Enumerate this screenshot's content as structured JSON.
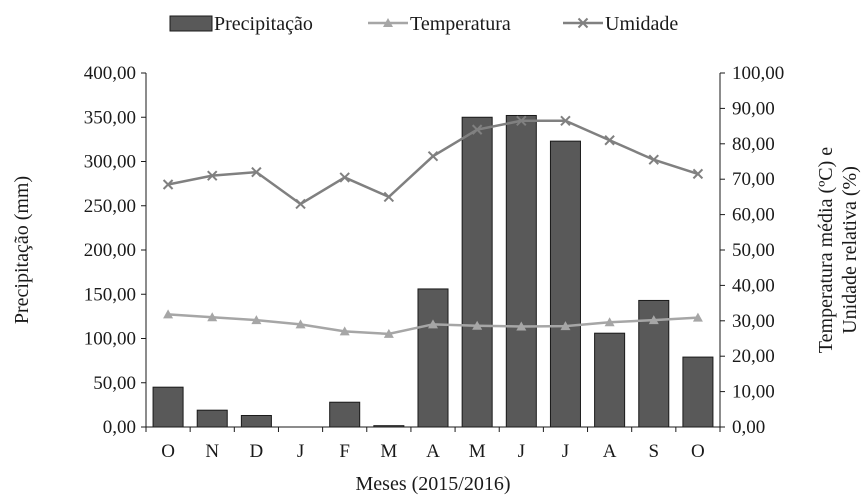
{
  "chart_data": {
    "type": "bar",
    "xlabel": "Meses (2015/2016)",
    "ylabel_left": "Precipitação (mm)",
    "ylabel_right_lines": [
      "Temperatura média (ºC) e",
      "Unidade relativa (%)"
    ],
    "categories": [
      "O",
      "N",
      "D",
      "J",
      "F",
      "M",
      "A",
      "M",
      "J",
      "J",
      "A",
      "S",
      "O"
    ],
    "ylim_left": [
      0,
      400
    ],
    "ylim_right": [
      0,
      100
    ],
    "left_ticks": [
      "0,00",
      "50,00",
      "100,00",
      "150,00",
      "200,00",
      "250,00",
      "300,00",
      "350,00",
      "400,00"
    ],
    "right_ticks": [
      "0,00",
      "10,00",
      "20,00",
      "30,00",
      "40,00",
      "50,00",
      "60,00",
      "70,00",
      "80,00",
      "90,00",
      "100,00"
    ],
    "legend_position": "top",
    "grid": false,
    "series": [
      {
        "name": "Precipitação",
        "kind": "bar",
        "axis": "left",
        "color": "#595959",
        "values": [
          45,
          19,
          13,
          0,
          28,
          1.5,
          156,
          350,
          352,
          323,
          106,
          143,
          79
        ]
      },
      {
        "name": "Temperatura",
        "kind": "line",
        "marker": "triangle",
        "axis": "right",
        "color": "#a6a6a6",
        "values": [
          31.8,
          31,
          30.2,
          29,
          27,
          26.3,
          29,
          28.6,
          28.4,
          28.5,
          29.6,
          30.2,
          30.9
        ]
      },
      {
        "name": "Umidade",
        "kind": "line",
        "marker": "x",
        "axis": "right",
        "color": "#808080",
        "values": [
          68.5,
          71,
          72,
          63,
          70.5,
          65,
          76.5,
          84,
          86.5,
          86.5,
          81,
          75.5,
          71.5
        ]
      }
    ]
  }
}
